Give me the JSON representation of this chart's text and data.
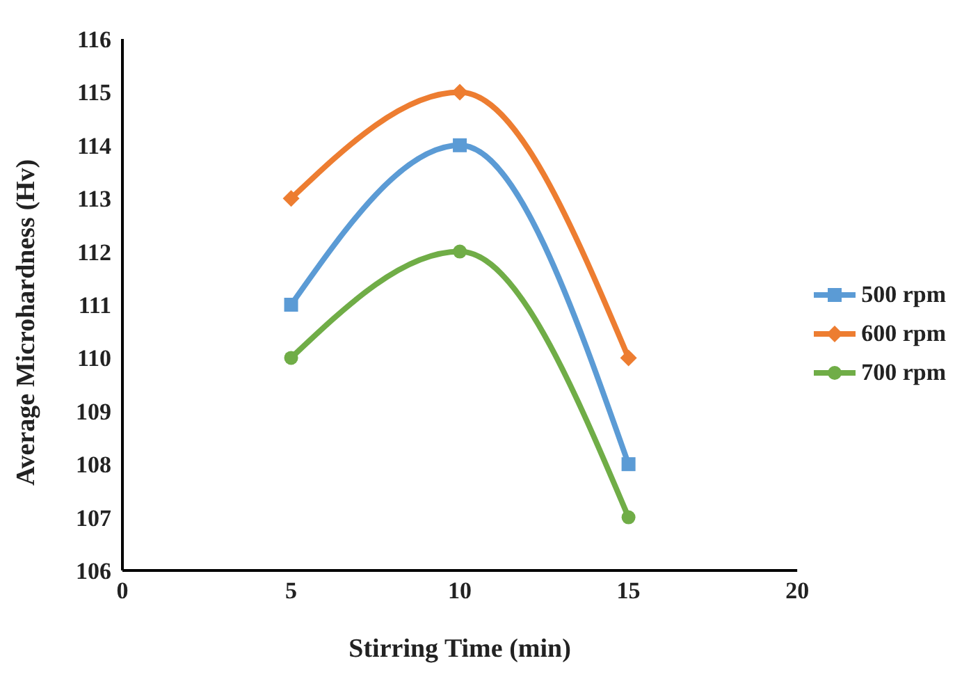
{
  "chart_data": {
    "type": "line",
    "xlabel": "Stirring Time (min)",
    "ylabel": "Average Microhardness (Hv)",
    "x": [
      5,
      10,
      15
    ],
    "series": [
      {
        "name": "500 rpm",
        "color": "#5b9bd5",
        "values": [
          111,
          114,
          108
        ],
        "marker": "square"
      },
      {
        "name": "600 rpm",
        "color": "#ed7d31",
        "values": [
          113,
          115,
          110
        ],
        "marker": "diamond"
      },
      {
        "name": "700 rpm",
        "color": "#70ad47",
        "values": [
          110,
          112,
          107
        ],
        "marker": "circle"
      }
    ],
    "xlim": [
      0,
      20
    ],
    "xticks": [
      0,
      5,
      10,
      15,
      20
    ],
    "ylim": [
      106,
      116
    ],
    "yticks": [
      106,
      107,
      108,
      109,
      110,
      111,
      112,
      113,
      114,
      115,
      116
    ],
    "grid": false,
    "legend": "right"
  }
}
